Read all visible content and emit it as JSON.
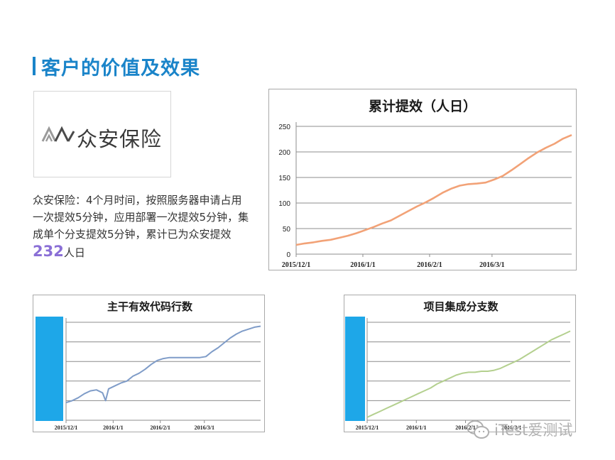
{
  "page": {
    "title": "客户的价值及效果"
  },
  "logo": {
    "text": "众安保险"
  },
  "description": {
    "text": "众安保险：4个月时间，按照服务器申请占用一次提效5分钟，应用部署一次提效5分钟，集成单个分支提效5分钟，累计已为众安提效",
    "highlight": "232",
    "suffix": "人日"
  },
  "colors": {
    "accent": "#1a84c9",
    "highlight": "#8a6fd6",
    "series_orange": "#f2a277",
    "series_blue": "#7f9cc8",
    "series_green": "#b4d08f",
    "blue_block": "#1ea7e8"
  },
  "watermark": {
    "text": "iTest爱测试",
    "icon": "wechat-icon"
  },
  "chart_data": [
    {
      "type": "line",
      "title": "累计提效（人日）",
      "xlabel": "",
      "ylabel": "",
      "ylim": [
        0,
        250
      ],
      "yticks": [
        0,
        50,
        100,
        150,
        200,
        250
      ],
      "xlim": [
        0,
        128
      ],
      "xticks": [
        {
          "label": "2015/12/1",
          "day": 0
        },
        {
          "label": "2016/1/1",
          "day": 31
        },
        {
          "label": "2016/2/1",
          "day": 62
        },
        {
          "label": "2016/3/1",
          "day": 91
        }
      ],
      "grid": true,
      "series": [
        {
          "name": "累计提效",
          "x": [
            0,
            4,
            8,
            12,
            16,
            20,
            24,
            28,
            32,
            36,
            40,
            44,
            48,
            52,
            56,
            60,
            64,
            68,
            72,
            76,
            80,
            84,
            88,
            92,
            96,
            100,
            104,
            108,
            112,
            116,
            120,
            124,
            128
          ],
          "values": [
            18,
            21,
            23,
            26,
            28,
            32,
            36,
            41,
            47,
            53,
            60,
            66,
            75,
            84,
            93,
            101,
            110,
            120,
            128,
            134,
            137,
            138,
            140,
            146,
            153,
            164,
            176,
            188,
            199,
            208,
            216,
            226,
            233
          ]
        }
      ]
    },
    {
      "type": "line",
      "title": "主干有效代码行数",
      "ylim": [
        0,
        100
      ],
      "xlim": [
        0,
        128
      ],
      "xticks": [
        {
          "label": "2015/12/1",
          "day": 0
        },
        {
          "label": "2016/1/1",
          "day": 31
        },
        {
          "label": "2016/2/1",
          "day": 62
        },
        {
          "label": "2016/3/1",
          "day": 91
        }
      ],
      "grid": true,
      "series": [
        {
          "name": "主干有效代码行数",
          "x": [
            0,
            4,
            8,
            12,
            16,
            20,
            24,
            26,
            28,
            32,
            36,
            40,
            44,
            48,
            52,
            56,
            60,
            64,
            68,
            72,
            76,
            80,
            84,
            88,
            92,
            96,
            100,
            104,
            108,
            112,
            116,
            120,
            124,
            128
          ],
          "values": [
            18,
            20,
            23,
            27,
            30,
            31,
            28,
            20,
            32,
            35,
            38,
            40,
            45,
            48,
            52,
            57,
            61,
            63,
            64,
            64,
            64,
            64,
            64,
            64,
            65,
            70,
            74,
            79,
            84,
            88,
            91,
            93,
            95,
            96
          ]
        }
      ]
    },
    {
      "type": "line",
      "title": "项目集成分支数",
      "ylim": [
        0,
        100
      ],
      "xlim": [
        0,
        128
      ],
      "xticks": [
        {
          "label": "2015/12/1",
          "day": 0
        },
        {
          "label": "2016/1/1",
          "day": 31
        },
        {
          "label": "2016/2/1",
          "day": 62
        },
        {
          "label": "2016/3/1",
          "day": 91
        }
      ],
      "grid": true,
      "series": [
        {
          "name": "项目集成分支数",
          "x": [
            0,
            4,
            8,
            12,
            16,
            20,
            24,
            28,
            32,
            36,
            40,
            44,
            48,
            52,
            56,
            60,
            64,
            68,
            72,
            76,
            80,
            84,
            88,
            92,
            96,
            100,
            104,
            108,
            112,
            116,
            120,
            124,
            128
          ],
          "values": [
            3,
            6,
            9,
            12,
            15,
            18,
            21,
            24,
            27,
            30,
            33,
            37,
            40,
            43,
            46,
            48,
            49,
            49,
            50,
            50,
            51,
            53,
            56,
            59,
            62,
            66,
            70,
            74,
            78,
            82,
            85,
            88,
            91
          ]
        }
      ]
    }
  ]
}
